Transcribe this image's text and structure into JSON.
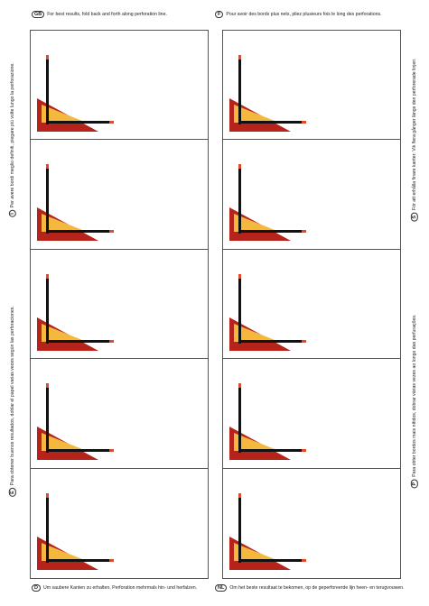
{
  "instructions": {
    "gb": {
      "code": "GB",
      "text": "For best results, fold back and forth along perforation line."
    },
    "f": {
      "code": "F",
      "text": "Pour avoir des bords plus nets, pliez plusieurs fois le long des perforations."
    },
    "i": {
      "code": "I",
      "text": "Per avere bordi meglio definiti, piegare più volte lungo la perforazione."
    },
    "s": {
      "code": "S",
      "text": "För att erhålla finare kanter: Vik flera gånger längs den perforerade linjen."
    },
    "e": {
      "code": "E",
      "text": "Para obtener buenos resultados, doblar el papel varias veces según las perforaciones."
    },
    "p": {
      "code": "P",
      "text": "Para obter bordos mais nítidos, dobrar várias vezes ao longo das perfurações."
    },
    "d": {
      "code": "D",
      "text": "Um saubere Kanten zu erhalten, Perforation mehrmals hin- und herfalzen."
    },
    "nl": {
      "code": "NL",
      "text": "Om het beste resultaat te bekomen, op de geperforeerde lijn heen- en terugvouwen."
    }
  },
  "colors": {
    "red": "#b5231a",
    "yellow": "#f4b83f",
    "black": "#111111",
    "tip": "#e24a2c",
    "border": "#555555"
  },
  "sheet": {
    "rows": 5,
    "columns": 2
  },
  "card_graphic": "red-triangle-with-yellow-triangle-and-black-l-lines"
}
